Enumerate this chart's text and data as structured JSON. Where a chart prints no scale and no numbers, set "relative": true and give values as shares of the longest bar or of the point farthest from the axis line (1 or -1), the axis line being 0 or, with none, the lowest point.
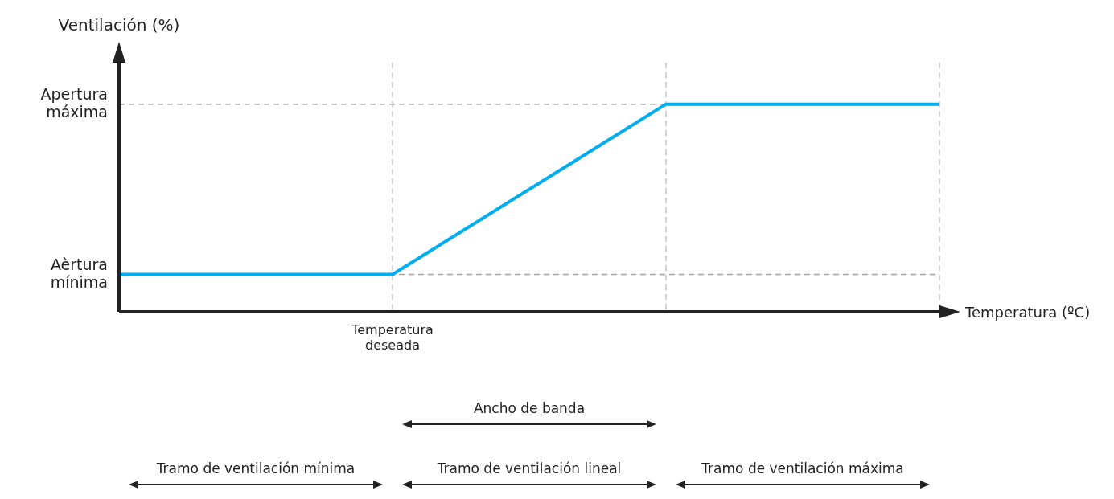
{
  "chart_data": {
    "type": "line",
    "relative": true,
    "xlabel": "Temperatura (ºC)",
    "ylabel": "Ventilación (%)",
    "categories": [
      null,
      null,
      null,
      null
    ],
    "values": [
      0.18,
      0.18,
      1,
      1
    ],
    "color": "#00aeef",
    "marker": "none",
    "line_style": "solid",
    "grid": "x",
    "ref_lines": [
      {
        "axis": "y",
        "value": 1,
        "label": "Apertura máxima",
        "color": "#a6a6a6",
        "line_style": "dashed"
      },
      {
        "axis": "y",
        "value": 0.18,
        "label": "Aèrtura mínima",
        "color": "#a6a6a6",
        "line_style": "dashed"
      }
    ],
    "annotations": [
      "Temperatura deseada",
      "Ancho de banda",
      "Tramo de ventilación mínima",
      "Tramo de ventilación lineal",
      "Tramo de ventilación máxima"
    ]
  }
}
